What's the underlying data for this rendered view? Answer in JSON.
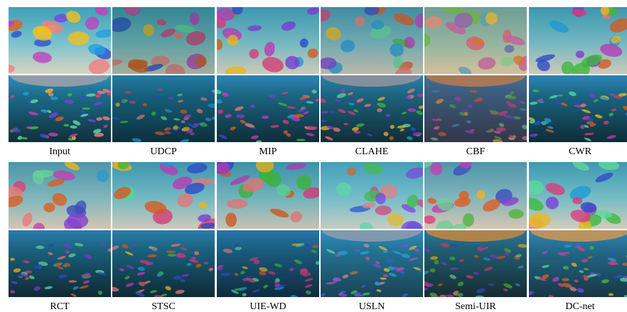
{
  "figure": {
    "rows": [
      {
        "labels": [
          "Input",
          "UDCP",
          "MIP",
          "CLAHE",
          "CBF",
          "CWR"
        ]
      },
      {
        "labels": [
          "RCT",
          "STSC",
          "UIE-WD",
          "USLN",
          "Semi-UIR",
          "DC-net"
        ]
      }
    ]
  }
}
